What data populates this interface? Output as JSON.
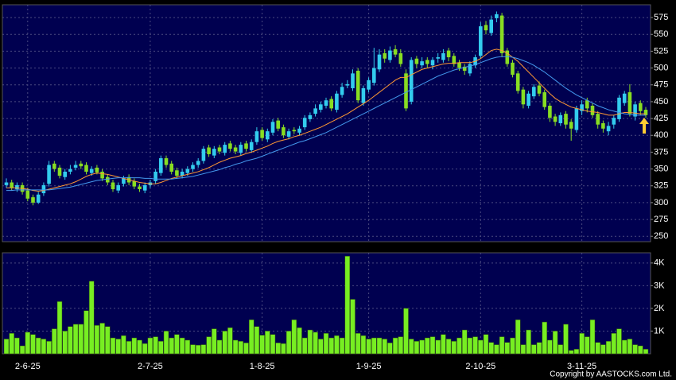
{
  "chart_data": [
    {
      "type": "candlestick",
      "categories": [
        null,
        null,
        null,
        null,
        "2-6-25",
        null,
        null,
        null,
        null,
        null,
        null,
        null,
        null,
        null,
        null,
        null,
        null,
        null,
        null,
        null,
        null,
        null,
        null,
        null,
        null,
        null,
        null,
        "2-7-25",
        null,
        null,
        null,
        null,
        null,
        null,
        null,
        null,
        null,
        null,
        null,
        null,
        null,
        null,
        null,
        null,
        null,
        null,
        null,
        null,
        "1-8-25",
        null,
        null,
        null,
        null,
        null,
        null,
        null,
        null,
        null,
        null,
        null,
        null,
        null,
        null,
        null,
        null,
        null,
        null,
        null,
        "1-9-25",
        null,
        null,
        null,
        null,
        null,
        null,
        null,
        null,
        null,
        null,
        null,
        null,
        null,
        null,
        null,
        null,
        null,
        null,
        null,
        null,
        "2-10-25",
        null,
        null,
        null,
        null,
        null,
        null,
        null,
        null,
        null,
        null,
        null,
        null,
        null,
        null,
        null,
        null,
        null,
        null,
        "3-11-25",
        null,
        null,
        null,
        null,
        null,
        null,
        null,
        null,
        null,
        null,
        null,
        null
      ],
      "open": [
        326,
        330,
        320,
        326,
        318,
        308,
        300,
        314,
        328,
        358,
        352,
        338,
        346,
        352,
        358,
        356,
        344,
        352,
        346,
        338,
        330,
        318,
        328,
        338,
        332,
        324,
        318,
        326,
        332,
        344,
        366,
        358,
        348,
        340,
        344,
        350,
        356,
        362,
        382,
        370,
        382,
        374,
        388,
        382,
        374,
        388,
        378,
        390,
        408,
        394,
        404,
        422,
        412,
        398,
        408,
        404,
        412,
        424,
        432,
        438,
        444,
        454,
        438,
        460,
        474,
        470,
        496,
        448,
        468,
        478,
        498,
        522,
        512,
        528,
        522,
        492,
        450,
        514,
        504,
        512,
        504,
        514,
        512,
        526,
        518,
        508,
        502,
        492,
        504,
        518,
        564,
        552,
        574,
        578,
        526,
        508,
        492,
        468,
        444,
        458,
        474,
        464,
        444,
        428,
        418,
        432,
        420,
        408,
        436,
        452,
        444,
        432,
        418,
        406,
        416,
        424,
        448,
        464,
        428,
        448,
        438
      ],
      "high": [
        336,
        334,
        330,
        330,
        322,
        312,
        316,
        330,
        362,
        362,
        356,
        350,
        356,
        362,
        362,
        360,
        354,
        356,
        350,
        342,
        334,
        330,
        340,
        342,
        336,
        328,
        330,
        334,
        350,
        370,
        370,
        362,
        352,
        350,
        354,
        360,
        366,
        384,
        386,
        384,
        386,
        390,
        392,
        386,
        390,
        392,
        394,
        412,
        412,
        410,
        424,
        426,
        416,
        410,
        412,
        414,
        430,
        434,
        446,
        450,
        456,
        458,
        466,
        478,
        482,
        498,
        500,
        474,
        486,
        530,
        528,
        528,
        532,
        534,
        528,
        498,
        516,
        518,
        516,
        516,
        516,
        522,
        528,
        530,
        522,
        512,
        506,
        510,
        520,
        568,
        570,
        578,
        584,
        582,
        530,
        512,
        496,
        472,
        466,
        476,
        480,
        468,
        448,
        432,
        434,
        436,
        424,
        444,
        452,
        456,
        448,
        436,
        422,
        420,
        430,
        460,
        466,
        476,
        450,
        452,
        442
      ],
      "low": [
        322,
        318,
        316,
        312,
        302,
        296,
        298,
        310,
        324,
        346,
        336,
        334,
        342,
        348,
        350,
        342,
        340,
        342,
        332,
        326,
        316,
        314,
        324,
        326,
        320,
        316,
        314,
        322,
        328,
        340,
        352,
        342,
        336,
        336,
        340,
        346,
        352,
        358,
        368,
        366,
        372,
        370,
        376,
        372,
        370,
        376,
        374,
        386,
        392,
        390,
        400,
        406,
        396,
        394,
        402,
        400,
        408,
        420,
        428,
        434,
        440,
        436,
        434,
        456,
        470,
        466,
        448,
        444,
        464,
        474,
        494,
        508,
        508,
        516,
        502,
        436,
        446,
        500,
        500,
        500,
        498,
        508,
        508,
        510,
        502,
        496,
        490,
        488,
        500,
        514,
        550,
        548,
        568,
        516,
        502,
        486,
        462,
        440,
        440,
        454,
        458,
        438,
        420,
        414,
        414,
        410,
        392,
        404,
        430,
        434,
        426,
        410,
        404,
        400,
        410,
        420,
        444,
        428,
        422,
        430,
        426
      ],
      "close": [
        330,
        322,
        326,
        316,
        306,
        300,
        312,
        326,
        356,
        350,
        340,
        346,
        350,
        356,
        354,
        346,
        350,
        345,
        336,
        330,
        320,
        326,
        336,
        330,
        324,
        320,
        326,
        330,
        346,
        366,
        356,
        346,
        340,
        346,
        350,
        356,
        362,
        380,
        372,
        380,
        376,
        386,
        380,
        376,
        386,
        380,
        390,
        406,
        396,
        406,
        420,
        410,
        400,
        406,
        406,
        410,
        426,
        430,
        440,
        446,
        452,
        440,
        462,
        472,
        476,
        492,
        452,
        470,
        482,
        500,
        520,
        514,
        526,
        520,
        506,
        440,
        512,
        506,
        510,
        506,
        512,
        516,
        522,
        516,
        506,
        500,
        496,
        506,
        516,
        562,
        556,
        572,
        580,
        522,
        506,
        490,
        466,
        446,
        462,
        472,
        462,
        442,
        426,
        420,
        430,
        416,
        410,
        440,
        446,
        440,
        430,
        416,
        410,
        414,
        426,
        456,
        462,
        432,
        446,
        436,
        430
      ],
      "up_color": "#33ccee",
      "down_color": "#88dd22",
      "lines": [
        {
          "color": "#ff9933",
          "values": [
            322,
            322,
            322,
            321,
            320,
            318,
            317,
            318,
            320,
            322,
            324,
            326,
            328,
            331,
            335,
            339,
            342,
            344,
            343,
            342,
            340,
            338,
            336,
            334,
            332,
            330,
            329,
            328,
            328,
            330,
            333,
            336,
            338,
            340,
            342,
            344,
            346,
            349,
            352,
            356,
            360,
            363,
            366,
            368,
            370,
            373,
            375,
            378,
            381,
            384,
            388,
            391,
            393,
            395,
            398,
            400,
            403,
            406,
            409,
            412,
            416,
            420,
            424,
            428,
            432,
            437,
            442,
            447,
            452,
            458,
            464,
            470,
            476,
            482,
            486,
            486,
            490,
            494,
            498,
            500,
            502,
            504,
            506,
            507,
            507,
            508,
            508,
            508,
            510,
            514,
            520,
            526,
            528,
            526,
            522,
            516,
            510,
            502,
            494,
            486,
            478,
            470,
            462,
            455,
            450,
            446,
            442,
            440,
            438,
            436,
            435,
            434,
            432,
            430,
            430,
            432,
            434,
            434,
            433,
            432,
            432
          ]
        },
        {
          "color": "#4499ee",
          "values": [
            318,
            318,
            319,
            319,
            319,
            319,
            319,
            319,
            319,
            320,
            321,
            322,
            323,
            325,
            327,
            329,
            331,
            333,
            334,
            335,
            336,
            337,
            337,
            337,
            337,
            337,
            336,
            336,
            335,
            335,
            335,
            335,
            336,
            337,
            338,
            339,
            341,
            343,
            345,
            347,
            349,
            352,
            354,
            357,
            359,
            362,
            364,
            366,
            369,
            372,
            375,
            378,
            381,
            384,
            387,
            390,
            392,
            395,
            398,
            401,
            404,
            408,
            412,
            416,
            420,
            424,
            428,
            432,
            436,
            440,
            444,
            448,
            452,
            456,
            460,
            464,
            468,
            472,
            476,
            480,
            484,
            488,
            491,
            494,
            497,
            499,
            501,
            503,
            505,
            508,
            511,
            514,
            516,
            517,
            517,
            516,
            514,
            511,
            508,
            504,
            499,
            494,
            488,
            482,
            476,
            470,
            465,
            460,
            456,
            452,
            448,
            444,
            441,
            438,
            436,
            434,
            432,
            431,
            430,
            430,
            430
          ]
        }
      ],
      "ylim": [
        242,
        594
      ],
      "yticks": [
        250,
        275,
        300,
        325,
        350,
        375,
        400,
        425,
        450,
        475,
        500,
        525,
        550,
        575
      ],
      "grid": true
    },
    {
      "type": "bar",
      "values": [
        650,
        900,
        700,
        350,
        950,
        850,
        700,
        650,
        550,
        1100,
        2300,
        1000,
        1200,
        1300,
        1300,
        1900,
        3200,
        1250,
        1350,
        1200,
        700,
        650,
        800,
        550,
        700,
        600,
        450,
        700,
        750,
        550,
        1000,
        700,
        850,
        700,
        600,
        400,
        380,
        400,
        750,
        1100,
        600,
        1000,
        1150,
        600,
        550,
        480,
        1500,
        1200,
        820,
        1000,
        850,
        480,
        450,
        1000,
        1500,
        1150,
        700,
        1050,
        950,
        650,
        900,
        700,
        800,
        700,
        4300,
        2400,
        900,
        800,
        650,
        700,
        700,
        650,
        480,
        700,
        750,
        2000,
        650,
        550,
        600,
        700,
        750,
        600,
        850,
        650,
        550,
        700,
        1050,
        700,
        750,
        600,
        850,
        500,
        400,
        750,
        500,
        700,
        1500,
        400,
        1050,
        400,
        500,
        1400,
        600,
        1000,
        400,
        1300,
        150,
        200,
        900,
        750,
        1500,
        500,
        400,
        550,
        900,
        1100,
        600,
        650,
        400,
        350,
        200
      ],
      "color": "#77ee22",
      "ylim": [
        0,
        4450
      ],
      "yticks": [
        {
          "value": 1000,
          "label": "1K"
        },
        {
          "value": 2000,
          "label": "2K"
        },
        {
          "value": 3000,
          "label": "3K"
        },
        {
          "value": 4000,
          "label": "4K"
        }
      ],
      "grid": true,
      "copyright": "Copyright by AASTOCKS.com Ltd."
    }
  ]
}
